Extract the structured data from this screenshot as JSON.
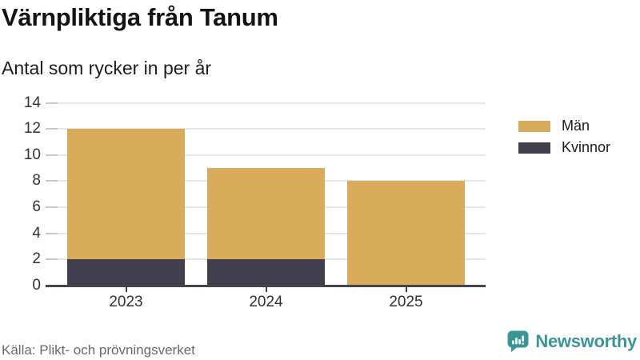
{
  "chart_data": {
    "type": "bar",
    "stacked": true,
    "title": "Värnpliktiga från Tanum",
    "subtitle": "Antal som rycker in per år",
    "categories": [
      "2023",
      "2024",
      "2025"
    ],
    "series": [
      {
        "name": "Män",
        "color": "#d9ac5b",
        "values": [
          10,
          7,
          8
        ]
      },
      {
        "name": "Kvinnor",
        "color": "#413f4e",
        "values": [
          2,
          2,
          0
        ]
      }
    ],
    "stack_totals": [
      12,
      9,
      8
    ],
    "ylim": [
      0,
      14
    ],
    "yticks": [
      0,
      2,
      4,
      6,
      8,
      10,
      12,
      14
    ],
    "xlabel": "",
    "ylabel": "",
    "grid": true,
    "legend_position": "right"
  },
  "footer": {
    "source": "Källa: Plikt- och prövningsverket",
    "brand": "Newsworthy",
    "brand_icon": "bar-chart-speech-bubble-icon"
  },
  "colors": {
    "men": "#d9ac5b",
    "women": "#413f4e",
    "brand_teal": "#3a9696",
    "gridline": "#e7e7e7",
    "axis": "#454350",
    "axis_label": "#333333",
    "source_text": "#6a696e"
  }
}
